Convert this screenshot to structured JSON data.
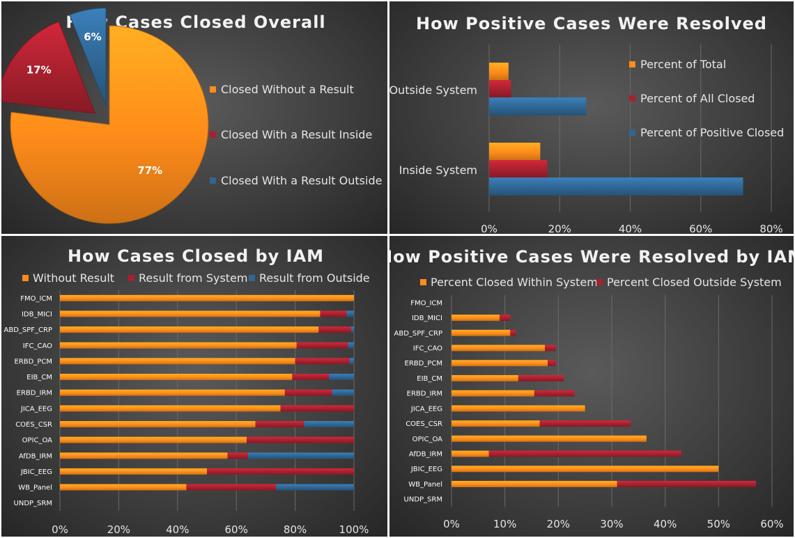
{
  "colors": {
    "orange": "#ff8c1a",
    "red": "#a8202e",
    "blue": "#2f6694"
  },
  "chart_data": [
    {
      "type": "pie",
      "title": "How Cases Closed Overall",
      "labels": [
        "Closed Without a Result",
        "Closed With a Result Inside",
        "Closed With a Result Outside"
      ],
      "values": [
        77,
        17,
        6
      ],
      "value_labels": [
        "77%",
        "17%",
        "6%"
      ],
      "legend": "right"
    },
    {
      "type": "bar",
      "orientation": "horizontal",
      "title": "How Positive Cases Were Resolved",
      "categories": [
        "Outside System",
        "Inside System"
      ],
      "series": [
        {
          "name": "Percent of Total",
          "values": [
            5.5,
            14.5
          ]
        },
        {
          "name": "Percent of All Closed",
          "values": [
            6.2,
            16.5
          ]
        },
        {
          "name": "Percent of Positive Closed",
          "values": [
            27.5,
            72
          ]
        }
      ],
      "xlim": [
        0,
        80
      ],
      "xticks": [
        "0%",
        "20%",
        "40%",
        "60%",
        "80%"
      ],
      "legend": "right",
      "grid": true
    },
    {
      "type": "bar",
      "orientation": "horizontal",
      "stacked": true,
      "title": "How Cases Closed by IAM",
      "categories": [
        "FMO_ICM",
        "IDB_MICI",
        "ABD_SPF_CRP",
        "IFC_CAO",
        "ERBD_PCM",
        "EIB_CM",
        "ERBD_IRM",
        "JICA_EEG",
        "COES_CSR",
        "OPIC_OA",
        "AfDB_IRM",
        "JBIC_EEG",
        "WB_Panel",
        "UNDP_SRM"
      ],
      "series": [
        {
          "name": "Without Result",
          "values": [
            100,
            88.5,
            88,
            80.5,
            80,
            79,
            76.5,
            75,
            66.5,
            63.5,
            57,
            50,
            43,
            0
          ]
        },
        {
          "name": "Result from System",
          "values": [
            0,
            9,
            11,
            17.5,
            18.5,
            12.5,
            16,
            25,
            16.5,
            36.5,
            7,
            50,
            30.5,
            0
          ]
        },
        {
          "name": "Result from Outside",
          "values": [
            0,
            2.5,
            1,
            2,
            1.5,
            8.5,
            7.5,
            0,
            17,
            0,
            36,
            0,
            26.5,
            0
          ]
        }
      ],
      "xlim": [
        0,
        100
      ],
      "xticks": [
        "0%",
        "20%",
        "40%",
        "60%",
        "80%",
        "100%"
      ],
      "legend": "top",
      "grid": true
    },
    {
      "type": "bar",
      "orientation": "horizontal",
      "stacked": true,
      "title": "How Positive Cases Were Resolved by IAM",
      "categories": [
        "FMO_ICM",
        "IDB_MICI",
        "ABD_SPF_CRP",
        "IFC_CAO",
        "ERBD_PCM",
        "EIB_CM",
        "ERBD_IRM",
        "JICA_EEG",
        "COES_CSR",
        "OPIC_OA",
        "AfDB_IRM",
        "JBIC_EEG",
        "WB_Panel",
        "UNDP_SRM"
      ],
      "series": [
        {
          "name": "Percent Closed Within System",
          "values": [
            0,
            9,
            11,
            17.5,
            18,
            12.5,
            15.5,
            25,
            16.5,
            36.5,
            7,
            50,
            31,
            0
          ]
        },
        {
          "name": "Percent Closed Outside System",
          "values": [
            0,
            2,
            1,
            2,
            1.5,
            8.5,
            7.5,
            0,
            17,
            0,
            36,
            0,
            26,
            0
          ]
        }
      ],
      "xlim": [
        0,
        60
      ],
      "xticks": [
        "0%",
        "10%",
        "20%",
        "30%",
        "40%",
        "50%",
        "60%"
      ],
      "legend": "top",
      "grid": true
    }
  ]
}
